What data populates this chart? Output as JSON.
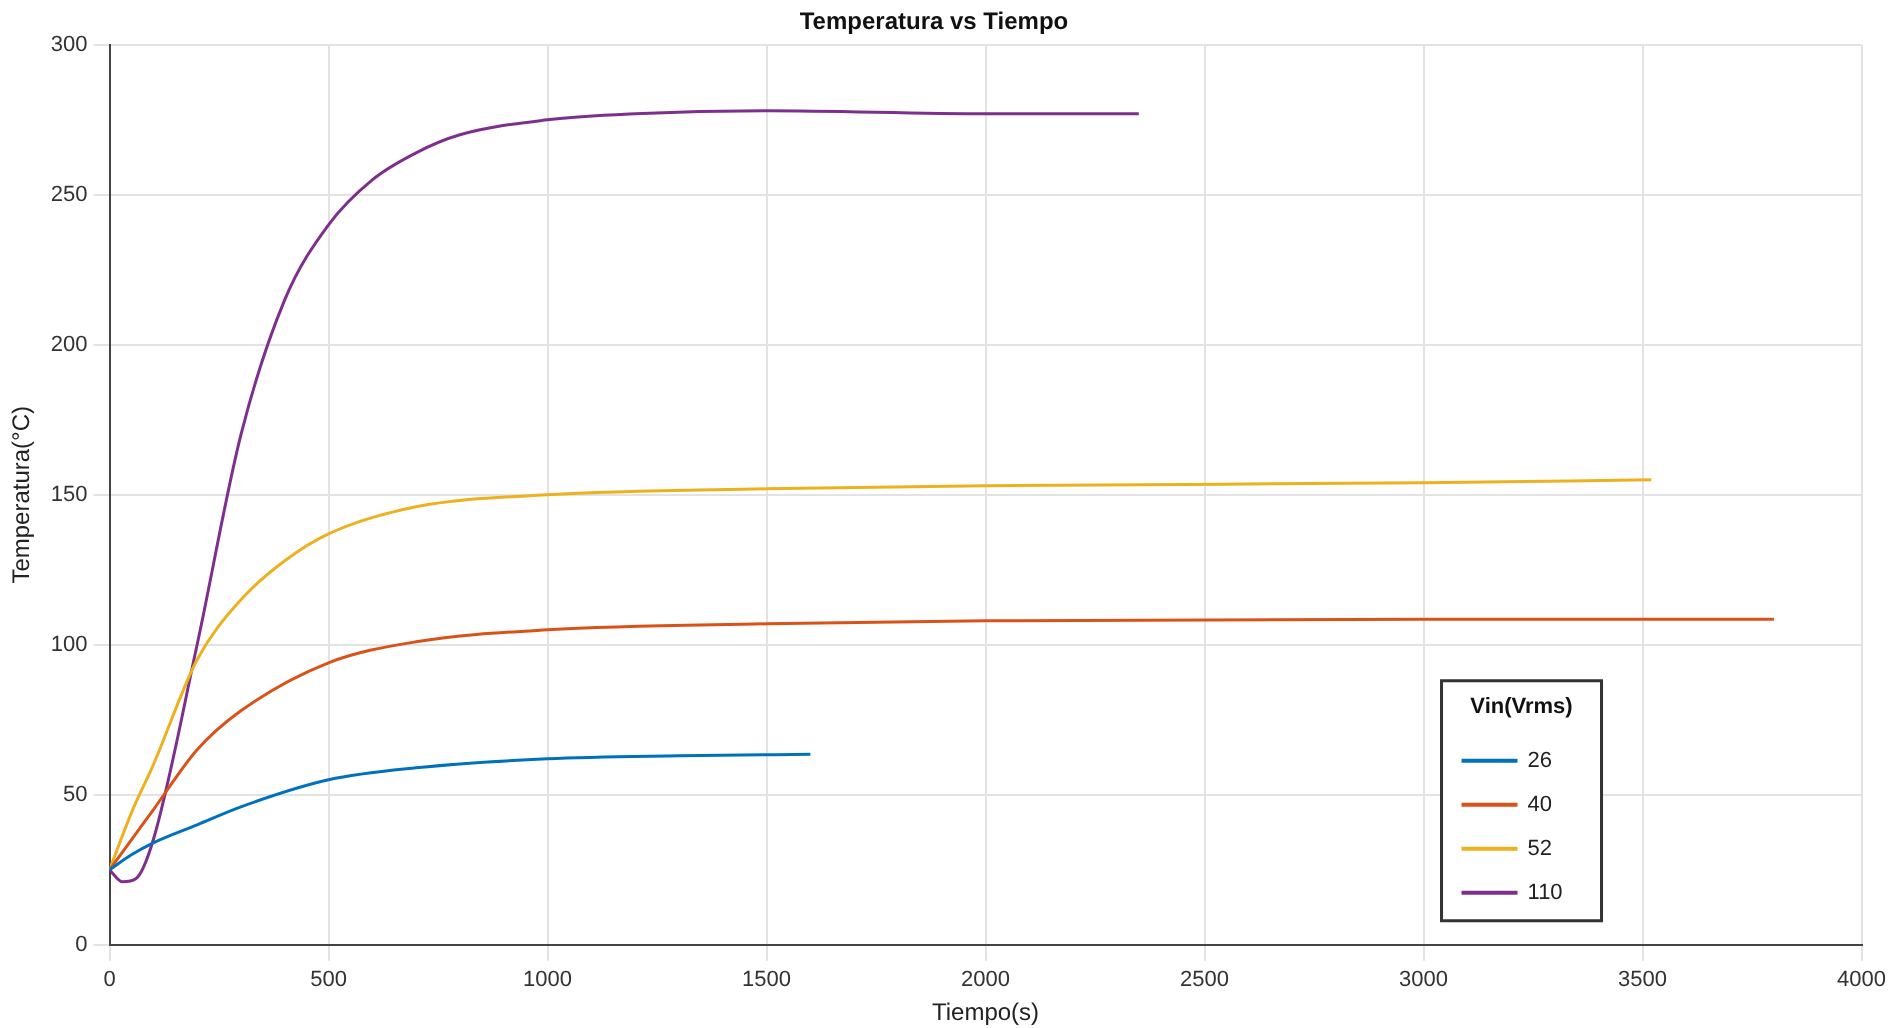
{
  "chart_data": {
    "type": "line",
    "title": "Temperatura vs Tiempo",
    "xlabel": "Tiempo(s)",
    "ylabel": "Temperatura(°C)",
    "legend_title": "Vin(Vrms)",
    "legend": "bottom right",
    "grid": true,
    "marker": "none",
    "line_style": "solid",
    "xlim": [
      0,
      4000
    ],
    "xticks": [
      0,
      500,
      1000,
      1500,
      2000,
      2500,
      3000,
      3500,
      4000
    ],
    "ylim": [
      0,
      300
    ],
    "yticks": [
      0,
      50,
      100,
      150,
      200,
      250,
      300
    ],
    "series": [
      {
        "name": "26",
        "color": "#0072bd",
        "x": [
          0,
          50,
          100,
          200,
          300,
          500,
          700,
          1000,
          1300,
          1600
        ],
        "values": [
          25,
          30,
          34,
          40,
          46,
          55,
          59,
          62,
          63,
          63.5
        ]
      },
      {
        "name": "40",
        "color": "#d95319",
        "x": [
          0,
          50,
          100,
          200,
          300,
          500,
          700,
          1000,
          1500,
          2000,
          3000,
          3800
        ],
        "values": [
          25,
          35,
          45,
          65,
          78,
          94,
          101,
          105,
          107,
          108,
          108.5,
          108.5
        ]
      },
      {
        "name": "52",
        "color": "#edb120",
        "x": [
          0,
          50,
          100,
          200,
          300,
          400,
          500,
          700,
          1000,
          1500,
          2000,
          3000,
          3520
        ],
        "values": [
          25,
          44,
          60,
          95,
          115,
          128,
          137,
          146,
          150,
          152,
          153,
          154,
          155
        ]
      },
      {
        "name": "110",
        "color": "#7e2f8e",
        "x": [
          0,
          30,
          60,
          100,
          200,
          300,
          400,
          500,
          600,
          700,
          800,
          1000,
          1200,
          1500,
          2000,
          2350
        ],
        "values": [
          25,
          21,
          22,
          35,
          100,
          170,
          215,
          240,
          255,
          264,
          270,
          275,
          277,
          278,
          277,
          277
        ]
      }
    ]
  }
}
